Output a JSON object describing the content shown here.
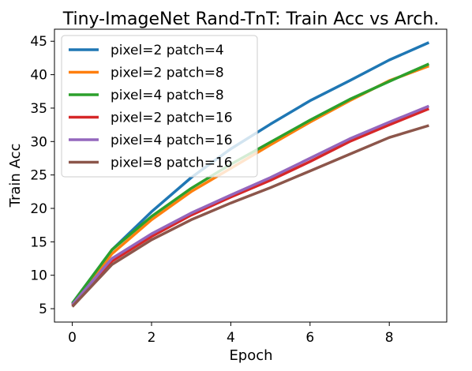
{
  "chart_data": {
    "type": "line",
    "title": "Tiny-ImageNet Rand-TnT: Train Acc vs Arch.",
    "xlabel": "Epoch",
    "ylabel": "Train Acc",
    "xlim": [
      -0.45,
      9.45
    ],
    "ylim": [
      3.0,
      46.8
    ],
    "grid": false,
    "legend_position": "top-left",
    "x": [
      0,
      1,
      2,
      3,
      4,
      5,
      6,
      7,
      8,
      9
    ],
    "xticks": [
      0,
      2,
      4,
      6,
      8
    ],
    "yticks": [
      5,
      10,
      15,
      20,
      25,
      30,
      35,
      40,
      45
    ],
    "series": [
      {
        "name": "pixel=2 patch=4",
        "color": "#1f77b4",
        "values": [
          5.8,
          13.8,
          19.5,
          24.6,
          28.9,
          32.6,
          36.1,
          39.1,
          42.2,
          44.8
        ]
      },
      {
        "name": "pixel=2 patch=8",
        "color": "#ff7f0e",
        "values": [
          5.6,
          13.2,
          18.3,
          22.5,
          26.0,
          29.5,
          32.9,
          36.1,
          39.1,
          41.3
        ]
      },
      {
        "name": "pixel=4 patch=8",
        "color": "#2ca02c",
        "values": [
          5.8,
          13.8,
          18.8,
          23.0,
          26.6,
          29.9,
          33.2,
          36.3,
          39.0,
          41.6
        ]
      },
      {
        "name": "pixel=2 patch=16",
        "color": "#d62728",
        "values": [
          5.5,
          12.1,
          15.8,
          19.0,
          21.7,
          24.2,
          27.0,
          30.0,
          32.5,
          34.9
        ]
      },
      {
        "name": "pixel=4 patch=16",
        "color": "#9467bd",
        "values": [
          5.6,
          12.5,
          16.2,
          19.3,
          22.0,
          24.6,
          27.5,
          30.4,
          32.9,
          35.3
        ]
      },
      {
        "name": "pixel=8 patch=16",
        "color": "#8c564b",
        "values": [
          5.3,
          11.6,
          15.3,
          18.3,
          20.8,
          23.1,
          25.6,
          28.1,
          30.6,
          32.4
        ]
      }
    ]
  }
}
